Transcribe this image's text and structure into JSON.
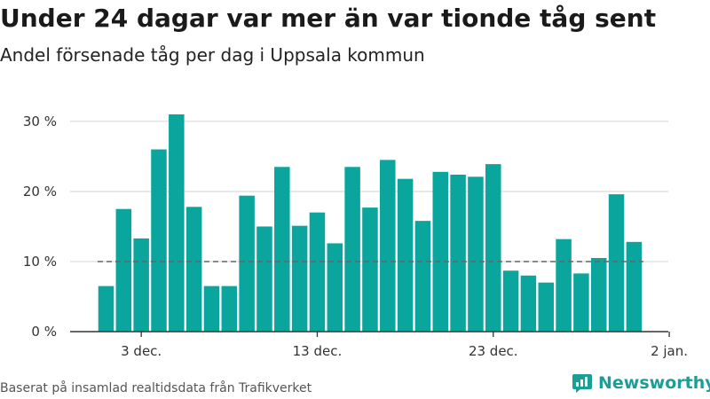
{
  "header": {
    "title": "Under 24 dagar var mer än var tionde tåg sent",
    "subtitle": "Andel försenade tåg per dag i Uppsala kommun"
  },
  "footer": {
    "source": "Baserat på insamlad realtidsdata från Trafikverket",
    "brand": "Newsworthy"
  },
  "colors": {
    "bar": "#0aa59c",
    "threshold_line": "#666666",
    "grid": "#dddddd",
    "axis": "#333333",
    "brand": "#1a9e96"
  },
  "icons": {
    "brand": "newsworthy-logo-icon"
  },
  "chart_data": {
    "type": "bar",
    "title": "Under 24 dagar var mer än var tionde tåg sent",
    "subtitle": "Andel försenade tåg per dag i Uppsala kommun",
    "x_start": "2017-12-01",
    "values": [
      6.5,
      17.5,
      13.3,
      26.0,
      31.0,
      17.8,
      6.5,
      6.5,
      19.4,
      15.0,
      23.5,
      15.1,
      17.0,
      12.6,
      23.5,
      17.7,
      24.5,
      21.8,
      15.8,
      22.8,
      22.4,
      22.1,
      23.9,
      8.7,
      8.0,
      7.0,
      13.2,
      8.3,
      10.5,
      19.6,
      12.8
    ],
    "ylim": [
      0,
      31
    ],
    "yticks": [
      0,
      10,
      20,
      30
    ],
    "ytick_labels": [
      "0 %",
      "10 %",
      "20 %",
      "30 %"
    ],
    "xticks": [
      {
        "date": "2017-12-03",
        "label": "3 dec."
      },
      {
        "date": "2017-12-13",
        "label": "13 dec."
      },
      {
        "date": "2017-12-23",
        "label": "23 dec."
      },
      {
        "date": "2018-01-02",
        "label": "2 jan."
      }
    ],
    "reference_line": 10,
    "grid": true,
    "legend": "none"
  }
}
